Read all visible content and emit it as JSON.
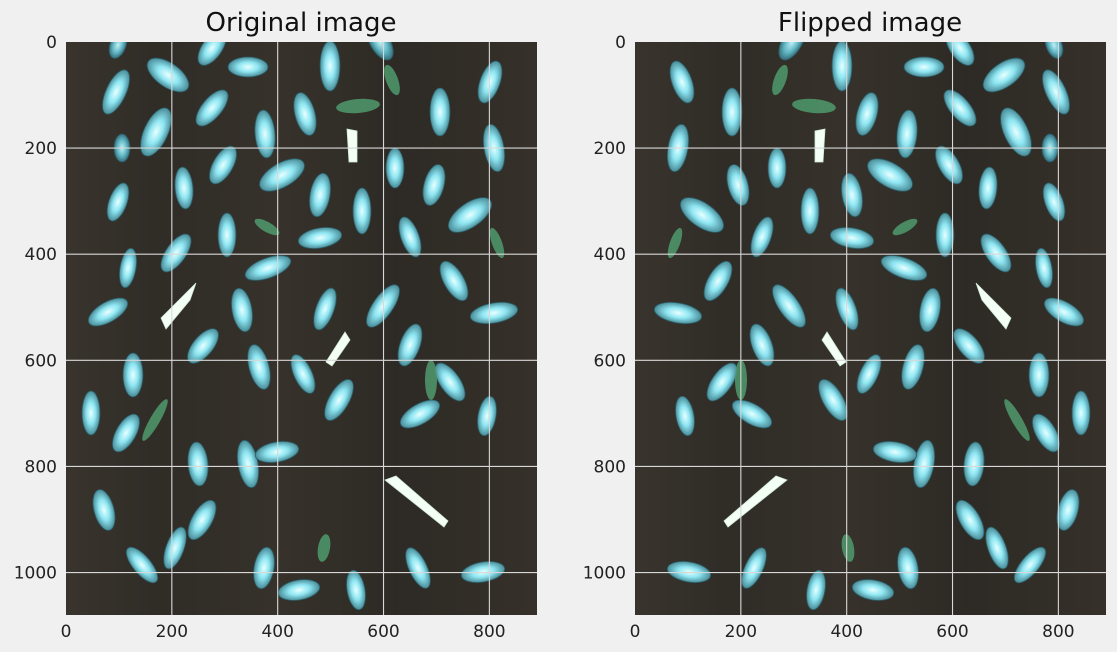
{
  "figure": {
    "background": "#f0f0f0"
  },
  "chart_data": [
    {
      "type": "image",
      "title": "Original image",
      "flipped": false,
      "xlim": [
        0,
        890
      ],
      "ylim": [
        1080,
        0
      ],
      "xticks": [
        0,
        200,
        400,
        600,
        800
      ],
      "yticks": [
        0,
        200,
        400,
        600,
        800,
        1000
      ],
      "grid": true,
      "image_background": "#34302a",
      "grain_color": "#7fe0f0",
      "debris_color": "#4f9a6c"
    },
    {
      "type": "image",
      "title": "Flipped image",
      "flipped": true,
      "xlim": [
        0,
        890
      ],
      "ylim": [
        1080,
        0
      ],
      "xticks": [
        0,
        200,
        400,
        600,
        800
      ],
      "yticks": [
        0,
        200,
        400,
        600,
        800,
        1000
      ],
      "grid": true,
      "image_background": "#34302a",
      "grain_color": "#7fe0f0",
      "debris_color": "#4f9a6c"
    }
  ]
}
